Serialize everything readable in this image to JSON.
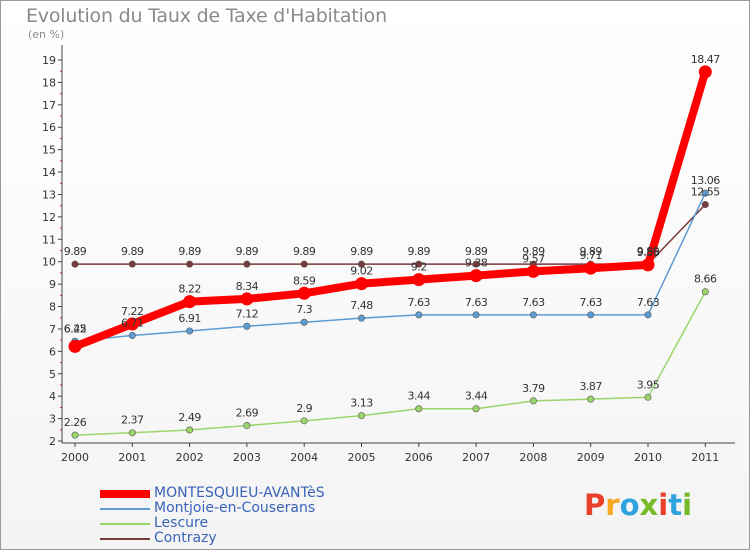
{
  "title": "Evolution du Taux de Taxe d'Habitation",
  "unit": "(en %)",
  "logo": {
    "letters": [
      "P",
      "r",
      "o",
      "x",
      "i",
      "t",
      "i"
    ],
    "colors": [
      "#e8402a",
      "#f7a823",
      "#2fa3dd",
      "#77bb2a",
      "#e8402a",
      "#2fa3dd",
      "#77bb2a"
    ]
  },
  "chart_data": {
    "type": "line",
    "title": "Evolution du Taux de Taxe d'Habitation",
    "ylabel": "(en %)",
    "xlabel": "",
    "x": [
      "2000",
      "2001",
      "2002",
      "2003",
      "2004",
      "2005",
      "2006",
      "2007",
      "2008",
      "2009",
      "2010",
      "2011"
    ],
    "ylim": [
      2,
      19
    ],
    "yticks": [
      "2",
      "3",
      "4",
      "5",
      "6",
      "7",
      "8",
      "9",
      "10",
      "11",
      "12",
      "13",
      "14",
      "15",
      "16",
      "17",
      "18",
      "19"
    ],
    "grid": false,
    "legend_position": "bottom-left",
    "series": [
      {
        "name": "MONTESQUIEU-AVANTèS",
        "color": "#ff0000",
        "labels": [
          "6.22",
          "7.22",
          "8.22",
          "8.34",
          "8.59",
          "9.02",
          "9.2",
          "9.38",
          "9.57",
          "9.71",
          "9.86",
          "18.47"
        ],
        "values": [
          6.22,
          7.22,
          8.22,
          8.34,
          8.59,
          9.02,
          9.2,
          9.38,
          9.57,
          9.71,
          9.86,
          18.47
        ]
      },
      {
        "name": "Montjoie-en-Couserans",
        "color": "#5d9bd3",
        "labels": [
          "6.45",
          "6.71",
          "6.91",
          "7.12",
          "7.3",
          "7.48",
          "7.63",
          "7.63",
          "7.63",
          "7.63",
          "7.63",
          "13.06"
        ],
        "values": [
          6.45,
          6.71,
          6.91,
          7.12,
          7.3,
          7.48,
          7.63,
          7.63,
          7.63,
          7.63,
          7.63,
          13.06
        ]
      },
      {
        "name": "Lescure",
        "color": "#9ad56a",
        "labels": [
          "2.26",
          "2.37",
          "2.49",
          "2.69",
          "2.9",
          "3.13",
          "3.44",
          "3.44",
          "3.79",
          "3.87",
          "3.95",
          "8.66"
        ],
        "values": [
          2.26,
          2.37,
          2.49,
          2.69,
          2.9,
          3.13,
          3.44,
          3.44,
          3.79,
          3.87,
          3.95,
          8.66
        ]
      },
      {
        "name": "Contrazy",
        "color": "#7a3b3b",
        "labels": [
          "9.89",
          "9.89",
          "9.89",
          "9.89",
          "9.89",
          "9.89",
          "9.89",
          "9.89",
          "9.89",
          "9.89",
          "9.89",
          "12.55"
        ],
        "values": [
          9.89,
          9.89,
          9.89,
          9.89,
          9.89,
          9.89,
          9.89,
          9.89,
          9.89,
          9.89,
          9.89,
          12.55
        ]
      }
    ]
  }
}
